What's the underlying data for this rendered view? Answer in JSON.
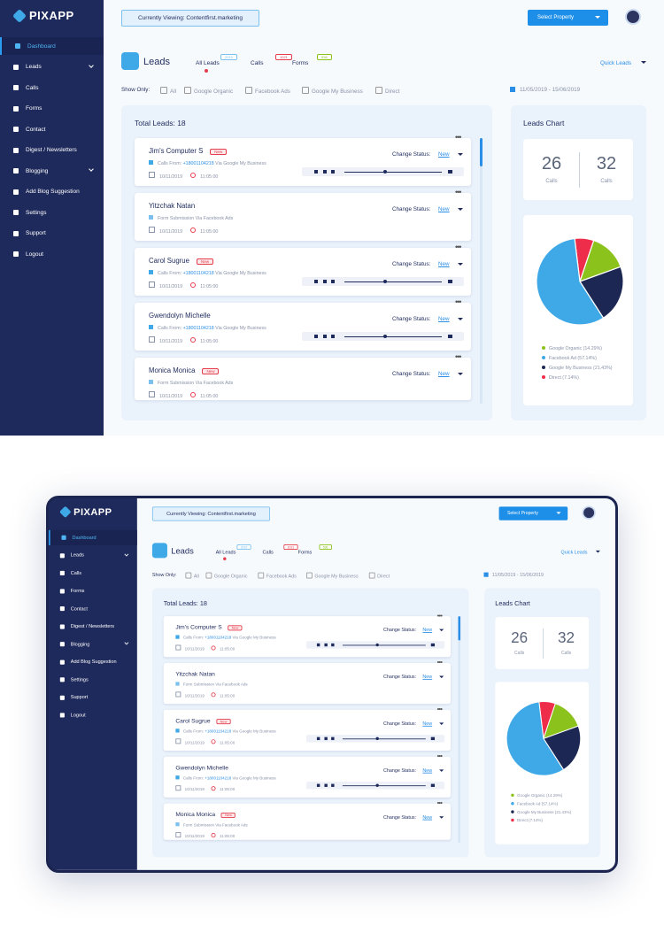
{
  "brand": "PIXAPP",
  "header": {
    "viewing": "Currently Viewing: Contentfirst.marketing",
    "select_property": "Select Property"
  },
  "nav": [
    "Dashboard",
    "Leads",
    "Calls",
    "Forms",
    "Contact",
    "Digest / Newsletters",
    "Blogging",
    "Add Blog Suggestion",
    "Settings",
    "Support",
    "Logout"
  ],
  "page": {
    "title": "Leads",
    "tabs": [
      {
        "label": "All Leads",
        "count": "2019"
      },
      {
        "label": "Calls",
        "count": "1021"
      },
      {
        "label": "Forms",
        "count": "536"
      }
    ],
    "quick_leads": "Quick Leads"
  },
  "filters": {
    "label": "Show Only:",
    "options": [
      "All",
      "Google Organic",
      "Facebook Ads",
      "Google My Business",
      "Direct"
    ],
    "date_range": "11/05/2019 - 15/06/2019"
  },
  "leads_panel": {
    "title": "Total Leads: 18",
    "change_status": "Change Status:",
    "leads": [
      {
        "name": "Jim's Computer S",
        "badge": "New",
        "source": "Calls From:",
        "phone": "+18001104218",
        "via": "Via Google My Business",
        "date": "10/11/2019",
        "time": "11:05:00",
        "status": "New"
      },
      {
        "name": "Yitzchak Natan",
        "source": "Form Submission Via Facebook Ads",
        "date": "10/11/2019",
        "time": "11:05:00",
        "status": "New"
      },
      {
        "name": "Carol Sugrue",
        "badge": "New",
        "source": "Calls From:",
        "phone": "+18001104218",
        "via": "Via Google My Business",
        "date": "10/11/2019",
        "time": "11:05:00",
        "status": "New"
      },
      {
        "name": "Gwendolyn Michelle",
        "source": "Calls From:",
        "phone": "+18001104218",
        "via": "Via Google My Business",
        "date": "10/11/2019",
        "time": "11:05:00",
        "status": "New"
      },
      {
        "name": "Monica Monica",
        "badge": "New",
        "source": "Form Submission Via Facebook Ads",
        "date": "10/11/2019",
        "time": "11:05:00",
        "status": "New"
      }
    ]
  },
  "chart_panel": {
    "title": "Leads Chart",
    "stats": [
      {
        "value": "26",
        "label": "Calls"
      },
      {
        "value": "32",
        "label": "Calls"
      }
    ],
    "chart_data": {
      "type": "pie",
      "slices": [
        {
          "label": "Google Organic (14.29%)",
          "value": 14.29,
          "color": "#8bc21b"
        },
        {
          "label": "Facebook Ad (57.14%)",
          "value": 57.14,
          "color": "#3fa9e8"
        },
        {
          "label": "Google My Business (21.43%)",
          "value": 21.43,
          "color": "#1d2754"
        },
        {
          "label": "Direct (7.14%)",
          "value": 7.14,
          "color": "#ee2d4a"
        }
      ]
    }
  }
}
